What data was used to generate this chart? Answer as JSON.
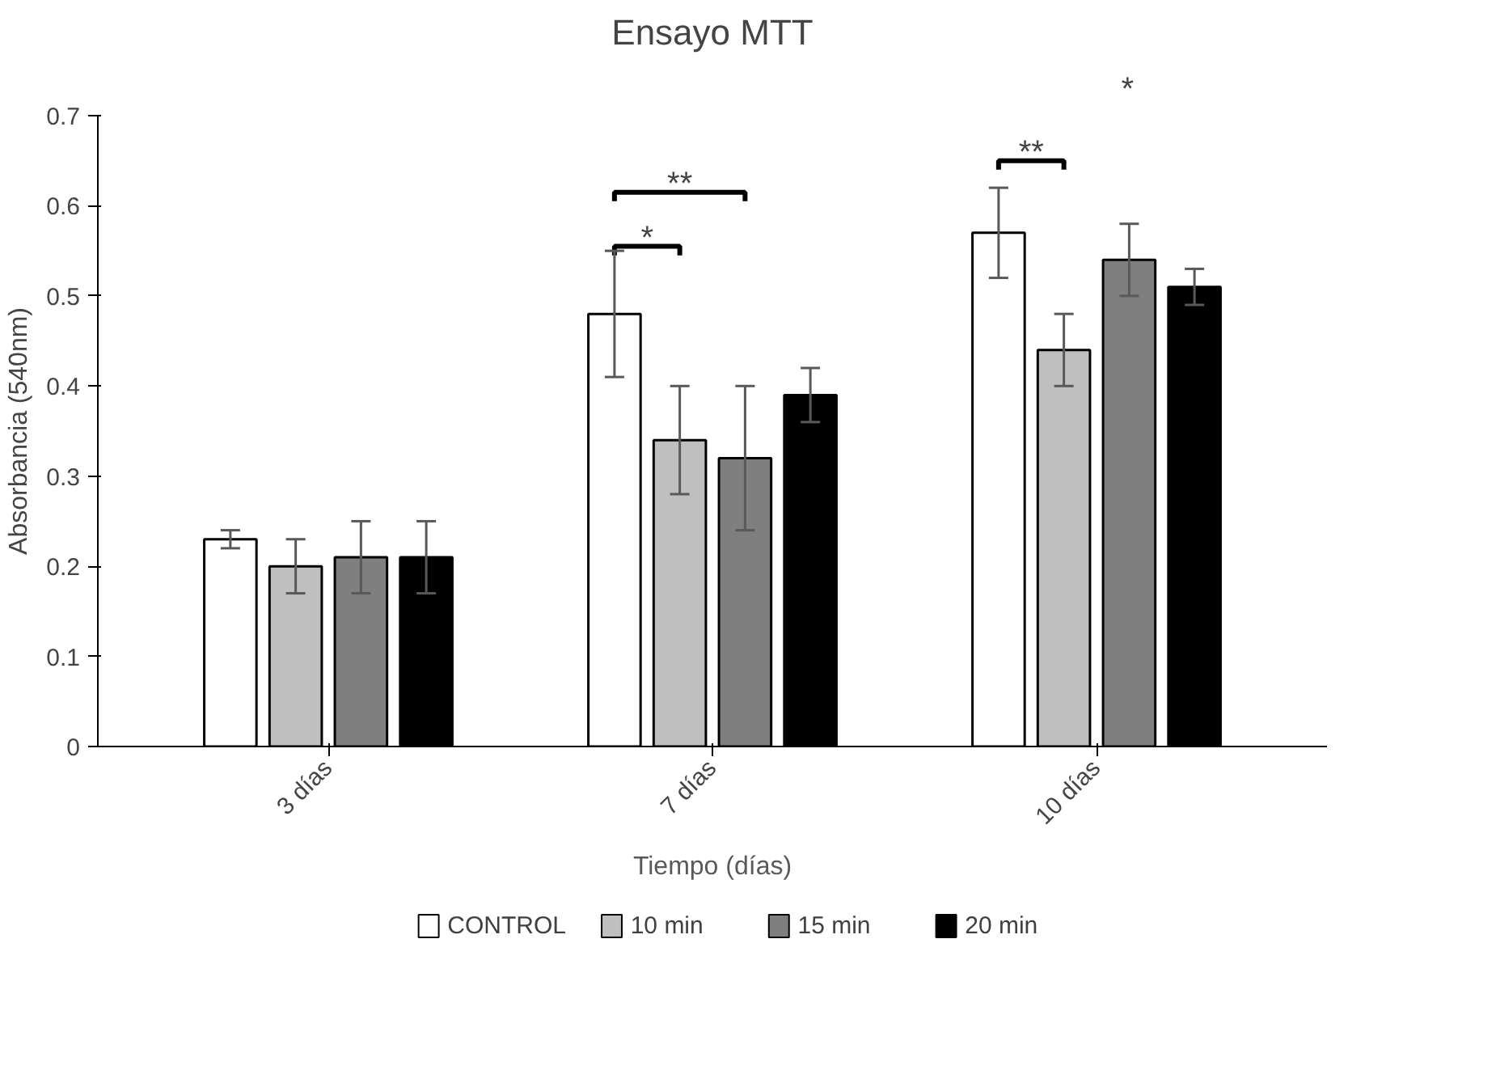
{
  "chart_data": {
    "type": "bar",
    "title": "Ensayo MTT",
    "xlabel": "Tiempo (días)",
    "ylabel": "Absorbancia (540nm)",
    "categories": [
      "3 días",
      "7 días",
      "10 días"
    ],
    "series": [
      {
        "name": "CONTROL",
        "color": "#ffffff",
        "values": [
          0.23,
          0.48,
          0.57
        ],
        "errors": [
          0.01,
          0.07,
          0.05
        ]
      },
      {
        "name": "10 min",
        "color": "#bfbfbf",
        "values": [
          0.2,
          0.34,
          0.44
        ],
        "errors": [
          0.03,
          0.06,
          0.04
        ]
      },
      {
        "name": "15 min",
        "color": "#7f7f7f",
        "values": [
          0.21,
          0.32,
          0.54
        ],
        "errors": [
          0.04,
          0.08,
          0.04
        ]
      },
      {
        "name": "20 min",
        "color": "#000000",
        "values": [
          0.21,
          0.39,
          0.51
        ],
        "errors": [
          0.04,
          0.03,
          0.02
        ]
      }
    ],
    "ylim": [
      0,
      0.7
    ],
    "yticks": [
      0,
      0.1,
      0.2,
      0.3,
      0.4,
      0.5,
      0.6,
      0.7
    ],
    "grid": false,
    "legend": "bottom",
    "annotations": [
      "*",
      "**",
      "**",
      "*"
    ]
  }
}
